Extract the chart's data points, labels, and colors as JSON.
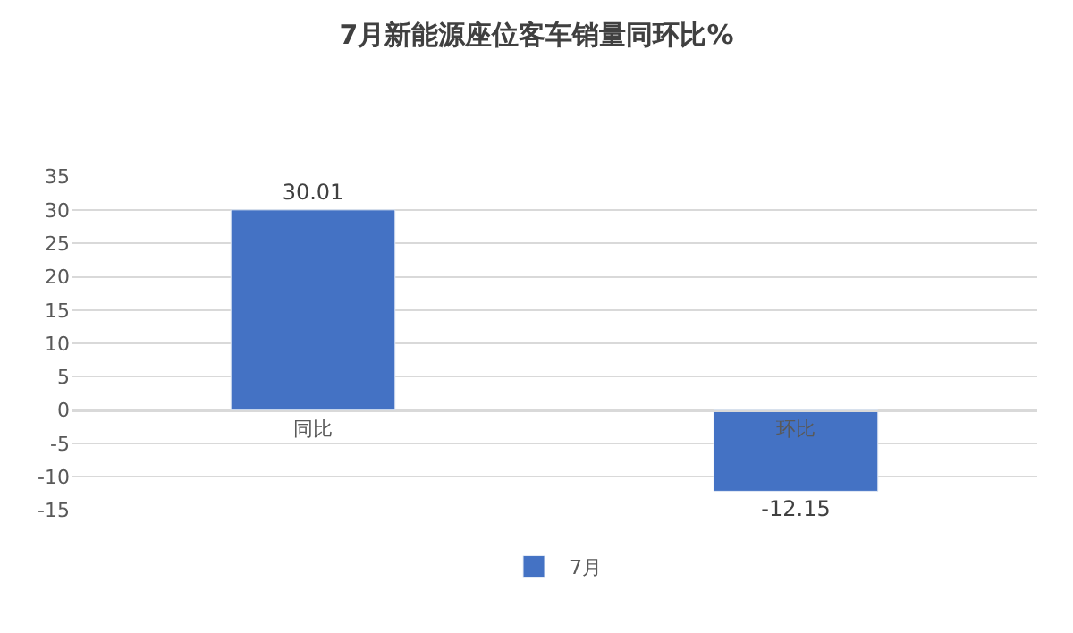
{
  "chart_data": {
    "type": "bar",
    "title": "7月新能源座位客车销量同环比%",
    "categories": [
      "同比",
      "环比"
    ],
    "series": [
      {
        "name": "7月",
        "color": "#4472c4",
        "values": [
          30.01,
          -12.15
        ]
      }
    ],
    "ylim": [
      -15,
      35
    ],
    "yticks": [
      -15,
      -10,
      -5,
      0,
      5,
      10,
      15,
      20,
      25,
      30,
      35
    ],
    "grid": "y",
    "legend": "bottom",
    "data_labels": true
  }
}
